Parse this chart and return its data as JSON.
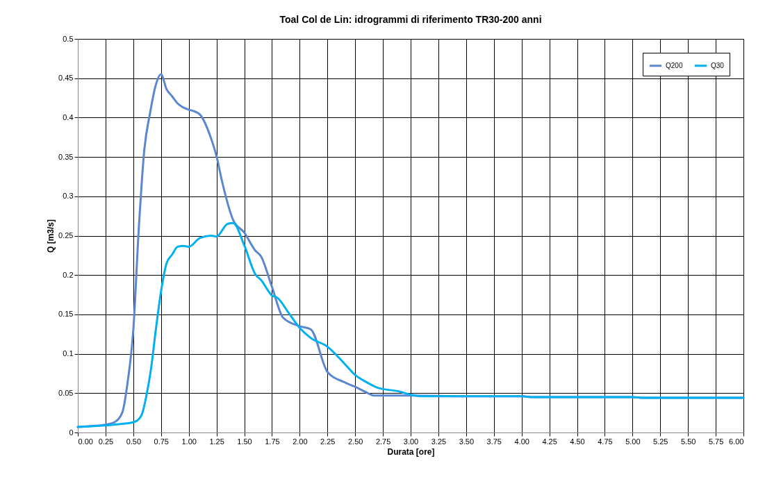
{
  "chart_data": {
    "type": "line",
    "title": "Toal Col de Lin: idrogrammi di riferimento  TR30-200 anni",
    "xlabel": "Durata [ore]",
    "ylabel": "Q [m3/s]",
    "series": [
      {
        "name": "Q200",
        "color": "#5b86d0",
        "x": [
          0,
          0.1,
          0.25,
          0.33,
          0.4,
          0.45,
          0.5,
          0.55,
          0.6,
          0.65,
          0.7,
          0.75,
          0.8,
          0.85,
          0.9,
          1.0,
          1.05,
          1.1,
          1.2,
          1.25,
          1.3,
          1.4,
          1.5,
          1.6,
          1.65,
          1.75,
          1.85,
          2.0,
          2.1,
          2.25,
          2.4,
          2.5,
          2.6,
          2.67,
          2.75,
          3.0,
          3.5,
          4.0,
          4.1,
          5.0,
          5.1,
          6.0
        ],
        "values": [
          0.007,
          0.008,
          0.01,
          0.013,
          0.025,
          0.065,
          0.13,
          0.26,
          0.36,
          0.405,
          0.44,
          0.455,
          0.436,
          0.427,
          0.418,
          0.41,
          0.408,
          0.404,
          0.374,
          0.351,
          0.319,
          0.27,
          0.254,
          0.231,
          0.224,
          0.185,
          0.146,
          0.135,
          0.131,
          0.077,
          0.064,
          0.058,
          0.051,
          0.047,
          0.047,
          0.047,
          0.046,
          0.046,
          0.045,
          0.045,
          0.044,
          0.044
        ]
      },
      {
        "name": "Q30",
        "color": "#00b0f0",
        "x": [
          0,
          0.25,
          0.4,
          0.5,
          0.55,
          0.58,
          0.62,
          0.66,
          0.7,
          0.75,
          0.8,
          0.85,
          0.9,
          0.95,
          1.0,
          1.1,
          1.2,
          1.25,
          1.35,
          1.4,
          1.5,
          1.6,
          1.65,
          1.75,
          1.8,
          1.9,
          2.0,
          2.1,
          2.25,
          2.4,
          2.5,
          2.6,
          2.7,
          2.9,
          3.0,
          3.1,
          3.25,
          4.0,
          4.1,
          5.0,
          5.1,
          6.0
        ],
        "values": [
          0.007,
          0.009,
          0.011,
          0.013,
          0.017,
          0.024,
          0.048,
          0.081,
          0.127,
          0.179,
          0.215,
          0.226,
          0.236,
          0.237,
          0.236,
          0.247,
          0.25,
          0.249,
          0.265,
          0.266,
          0.238,
          0.201,
          0.194,
          0.174,
          0.171,
          0.152,
          0.133,
          0.12,
          0.109,
          0.088,
          0.073,
          0.064,
          0.057,
          0.052,
          0.048,
          0.046,
          0.046,
          0.046,
          0.045,
          0.045,
          0.044,
          0.044
        ]
      }
    ],
    "xlim": [
      0,
      6
    ],
    "xticks": [
      {
        "value": 0,
        "label": "0.00"
      },
      {
        "value": 0.25,
        "label": "0.25"
      },
      {
        "value": 0.5,
        "label": "0.50"
      },
      {
        "value": 0.75,
        "label": "0.75"
      },
      {
        "value": 1,
        "label": "1.00"
      },
      {
        "value": 1.25,
        "label": "1.25"
      },
      {
        "value": 1.5,
        "label": "1.50"
      },
      {
        "value": 1.75,
        "label": "1.75"
      },
      {
        "value": 2,
        "label": "2.00"
      },
      {
        "value": 2.25,
        "label": "2.25"
      },
      {
        "value": 2.5,
        "label": "2.50"
      },
      {
        "value": 2.75,
        "label": "2.75"
      },
      {
        "value": 3,
        "label": "3.00"
      },
      {
        "value": 3.25,
        "label": "3.25"
      },
      {
        "value": 3.5,
        "label": "3.50"
      },
      {
        "value": 3.75,
        "label": "3.75"
      },
      {
        "value": 4,
        "label": "4.00"
      },
      {
        "value": 4.25,
        "label": "4.25"
      },
      {
        "value": 4.5,
        "label": "4.50"
      },
      {
        "value": 4.75,
        "label": "4.75"
      },
      {
        "value": 5,
        "label": "5.00"
      },
      {
        "value": 5.25,
        "label": "5.25"
      },
      {
        "value": 5.5,
        "label": "5.50"
      },
      {
        "value": 5.75,
        "label": "5.75"
      },
      {
        "value": 6,
        "label": "6.00"
      }
    ],
    "ylim": [
      0,
      0.5
    ],
    "yticks": [
      0,
      0.05,
      0.1,
      0.15,
      0.2,
      0.25,
      0.3,
      0.35,
      0.4,
      0.45,
      0.5
    ],
    "grid": true,
    "legend": "top right",
    "marker": "none",
    "line_style": "solid"
  }
}
